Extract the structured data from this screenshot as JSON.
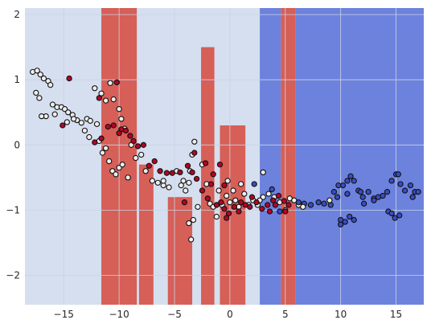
{
  "chart_data": {
    "type": "scatter",
    "title": "",
    "xlabel": "",
    "ylabel": "",
    "xlim": [
      -18.5,
      17.5
    ],
    "ylim": [
      -2.45,
      2.1
    ],
    "grid": true,
    "legend": "none",
    "x_ticks": [
      -15,
      -10,
      -5,
      0,
      5,
      10,
      15
    ],
    "y_ticks": [
      -2,
      -1,
      0,
      1,
      2
    ],
    "x_tick_labels": [
      "−15",
      "−10",
      "−5",
      "0",
      "5",
      "10",
      "15"
    ],
    "y_tick_labels": [
      "−2",
      "−1",
      "0",
      "1",
      "2"
    ],
    "colors": {
      "background_class": "#d5dfef",
      "red_class": "#d65f57",
      "blue_class": "#6c82dd",
      "point_white": "#eeeeee",
      "point_red": "#b40426",
      "point_blue": "#3b4cc0",
      "point_cream": "#f4f0c8",
      "point_edge": "#111111"
    },
    "decision_regions": {
      "red": [
        {
          "x0": -11.6,
          "x1": -8.4,
          "y_bottom": -2.45,
          "y_top": 2.1
        },
        {
          "x0": -8.2,
          "x1": -6.9,
          "y_bottom": -2.45,
          "y_top": -0.3
        },
        {
          "x0": -5.6,
          "x1": -3.4,
          "y_bottom": -2.45,
          "y_top": -0.8
        },
        {
          "x0": -2.6,
          "x1": -1.4,
          "y_bottom": -2.45,
          "y_top": 1.5
        },
        {
          "x0": -0.9,
          "x1": 1.4,
          "y_bottom": -2.45,
          "y_top": 0.3
        },
        {
          "x0": 4.6,
          "x1": 5.9,
          "y_bottom": -2.45,
          "y_top": 2.1
        }
      ],
      "blue": [
        {
          "x0": 2.7,
          "x1": 4.6,
          "y_bottom": -2.45,
          "y_top": 2.1
        },
        {
          "x0": 5.9,
          "x1": 17.5,
          "y_bottom": -2.45,
          "y_top": 2.1
        }
      ]
    },
    "series": [
      {
        "class": "white",
        "points": [
          [
            -17.8,
            1.12
          ],
          [
            -17.4,
            1.14
          ],
          [
            -17.1,
            1.08
          ],
          [
            -16.8,
            1.02
          ],
          [
            -16.4,
            0.98
          ],
          [
            -16.2,
            0.92
          ],
          [
            -17.5,
            0.8
          ],
          [
            -17.2,
            0.72
          ],
          [
            -16.0,
            0.62
          ],
          [
            -15.6,
            0.58
          ],
          [
            -15.2,
            0.58
          ],
          [
            -14.9,
            0.55
          ],
          [
            -14.6,
            0.5
          ],
          [
            -14.2,
            0.46
          ],
          [
            -13.8,
            0.38
          ],
          [
            -13.4,
            0.34
          ],
          [
            -12.9,
            0.4
          ],
          [
            -12.6,
            0.37
          ],
          [
            -12.2,
            0.87
          ],
          [
            -11.6,
            0.79
          ],
          [
            -11.2,
            0.68
          ],
          [
            -10.8,
            0.95
          ],
          [
            -10.5,
            0.7
          ],
          [
            -10.0,
            0.55
          ],
          [
            -9.8,
            0.4
          ],
          [
            -9.5,
            0.25
          ],
          [
            -14.7,
            0.35
          ],
          [
            -14.1,
            0.4
          ],
          [
            -13.1,
            0.22
          ],
          [
            -12.7,
            0.12
          ],
          [
            -15.8,
            0.47
          ],
          [
            -16.6,
            0.44
          ],
          [
            -17.0,
            0.44
          ],
          [
            -12.0,
            0.32
          ],
          [
            -11.8,
            0.06
          ],
          [
            -11.5,
            -0.12
          ],
          [
            -11.2,
            -0.05
          ],
          [
            -10.9,
            -0.25
          ],
          [
            -10.6,
            -0.4
          ],
          [
            -10.3,
            -0.45
          ],
          [
            -10.0,
            -0.35
          ],
          [
            -9.7,
            -0.3
          ],
          [
            -9.2,
            -0.5
          ],
          [
            -8.9,
            0.0
          ],
          [
            -8.5,
            -0.2
          ],
          [
            -8.0,
            -0.15
          ],
          [
            -7.6,
            -0.4
          ],
          [
            -7.0,
            -0.55
          ],
          [
            -6.5,
            -0.58
          ],
          [
            -6.0,
            -0.62
          ],
          [
            -5.5,
            -0.65
          ],
          [
            -4.8,
            -0.4
          ],
          [
            -4.2,
            -0.55
          ],
          [
            -3.7,
            -0.58
          ],
          [
            -3.4,
            -0.15
          ],
          [
            -3.2,
            0.05
          ],
          [
            -2.5,
            -0.3
          ],
          [
            -2.1,
            -0.6
          ],
          [
            -1.8,
            -0.9
          ],
          [
            -1.5,
            -0.95
          ],
          [
            -1.0,
            -0.7
          ],
          [
            -0.7,
            -0.92
          ],
          [
            -0.3,
            -0.78
          ],
          [
            0.0,
            -0.88
          ],
          [
            0.5,
            -0.85
          ],
          [
            0.8,
            -0.95
          ],
          [
            1.3,
            -0.75
          ],
          [
            1.7,
            -0.92
          ],
          [
            2.1,
            -0.85
          ],
          [
            2.5,
            -0.92
          ],
          [
            3.0,
            -0.8
          ],
          [
            3.5,
            -0.75
          ],
          [
            4.0,
            -0.8
          ],
          [
            4.5,
            -0.88
          ],
          [
            5.0,
            -1.0
          ],
          [
            5.4,
            -0.82
          ],
          [
            5.8,
            -0.85
          ],
          [
            6.2,
            -0.92
          ],
          [
            -3.5,
            -1.45
          ],
          [
            -3.7,
            -1.2
          ],
          [
            -3.3,
            -1.15
          ],
          [
            -2.9,
            -0.95
          ],
          [
            3.0,
            -0.42
          ],
          [
            2.7,
            -0.85
          ],
          [
            -1.2,
            -1.1
          ],
          [
            -0.2,
            -0.55
          ],
          [
            0.3,
            -0.7
          ],
          [
            1.0,
            -0.6
          ],
          [
            -3.6,
            -0.4
          ],
          [
            -4.0,
            -0.7
          ],
          [
            -4.4,
            -0.62
          ],
          [
            -6.0,
            -0.55
          ]
        ]
      },
      {
        "class": "red",
        "points": [
          [
            -14.5,
            1.02
          ],
          [
            -15.1,
            0.3
          ],
          [
            -12.2,
            0.04
          ],
          [
            -11.8,
            0.72
          ],
          [
            -11.6,
            0.1
          ],
          [
            -10.2,
            0.96
          ],
          [
            -9.8,
            0.24
          ],
          [
            -9.4,
            0.22
          ],
          [
            -9.0,
            0.14
          ],
          [
            -8.7,
            0.06
          ],
          [
            -8.3,
            -0.02
          ],
          [
            -7.8,
            0.0
          ],
          [
            -7.3,
            -0.32
          ],
          [
            -6.8,
            -0.25
          ],
          [
            -6.3,
            -0.4
          ],
          [
            -5.7,
            -0.43
          ],
          [
            -5.2,
            -0.43
          ],
          [
            -4.5,
            -0.42
          ],
          [
            -3.8,
            -0.32
          ],
          [
            -3.4,
            -0.42
          ],
          [
            -3.0,
            -0.52
          ],
          [
            -2.5,
            -0.7
          ],
          [
            -2.0,
            -0.82
          ],
          [
            -1.7,
            -0.6
          ],
          [
            -1.2,
            -0.92
          ],
          [
            -0.8,
            -0.88
          ],
          [
            -0.5,
            -0.98
          ],
          [
            -0.1,
            -1.05
          ],
          [
            0.4,
            -0.95
          ],
          [
            1.0,
            -0.88
          ],
          [
            1.4,
            -0.92
          ],
          [
            2.0,
            -0.8
          ],
          [
            2.4,
            -0.88
          ],
          [
            2.9,
            -0.98
          ],
          [
            3.4,
            -0.92
          ],
          [
            3.9,
            -0.85
          ],
          [
            4.4,
            -0.78
          ],
          [
            4.9,
            -0.86
          ],
          [
            5.3,
            -0.92
          ],
          [
            5.0,
            -1.02
          ],
          [
            -2.2,
            -0.28
          ],
          [
            -1.5,
            -0.45
          ],
          [
            -0.9,
            -0.3
          ],
          [
            -10.5,
            0.3
          ],
          [
            -11.0,
            0.28
          ],
          [
            -10.0,
            0.18
          ],
          [
            -3.2,
            -0.12
          ],
          [
            -0.5,
            -0.62
          ],
          [
            0.8,
            -1.02
          ],
          [
            1.8,
            -0.95
          ],
          [
            4.1,
            -0.92
          ],
          [
            -4.1,
            -0.88
          ],
          [
            -0.3,
            -1.12
          ],
          [
            3.6,
            -1.02
          ]
        ]
      },
      {
        "class": "blue",
        "points": [
          [
            6.2,
            -0.88
          ],
          [
            6.7,
            -0.9
          ],
          [
            7.3,
            -0.92
          ],
          [
            8.0,
            -0.88
          ],
          [
            8.5,
            -0.9
          ],
          [
            9.1,
            -0.92
          ],
          [
            9.7,
            -0.8
          ],
          [
            10.2,
            -0.62
          ],
          [
            10.6,
            -0.55
          ],
          [
            10.9,
            -0.48
          ],
          [
            11.2,
            -0.55
          ],
          [
            11.6,
            -0.7
          ],
          [
            12.0,
            -0.8
          ],
          [
            12.5,
            -0.72
          ],
          [
            13.0,
            -0.82
          ],
          [
            13.4,
            -0.8
          ],
          [
            13.8,
            -0.78
          ],
          [
            14.2,
            -0.72
          ],
          [
            14.6,
            -0.55
          ],
          [
            15.0,
            -0.45
          ],
          [
            15.4,
            -0.6
          ],
          [
            15.8,
            -0.7
          ],
          [
            16.3,
            -0.62
          ],
          [
            16.7,
            -0.72
          ],
          [
            17.0,
            -0.72
          ],
          [
            9.8,
            -0.62
          ],
          [
            10.0,
            -1.15
          ],
          [
            10.4,
            -1.18
          ],
          [
            10.8,
            -1.1
          ],
          [
            11.2,
            -1.15
          ],
          [
            14.3,
            -1.02
          ],
          [
            14.9,
            -1.12
          ],
          [
            15.3,
            -1.08
          ],
          [
            13.0,
            -0.85
          ],
          [
            12.1,
            -0.9
          ],
          [
            15.2,
            -0.45
          ],
          [
            2.2,
            -0.6
          ],
          [
            10.0,
            -1.22
          ],
          [
            14.6,
            -1.05
          ],
          [
            16.5,
            -0.8
          ],
          [
            11.8,
            -0.72
          ],
          [
            9.4,
            -0.72
          ],
          [
            10.6,
            -0.75
          ],
          [
            4.5,
            -1.02
          ],
          [
            3.8,
            -0.68
          ]
        ]
      },
      {
        "class": "cream",
        "points": [
          [
            9.0,
            -0.85
          ],
          [
            6.6,
            -0.95
          ]
        ]
      }
    ]
  }
}
